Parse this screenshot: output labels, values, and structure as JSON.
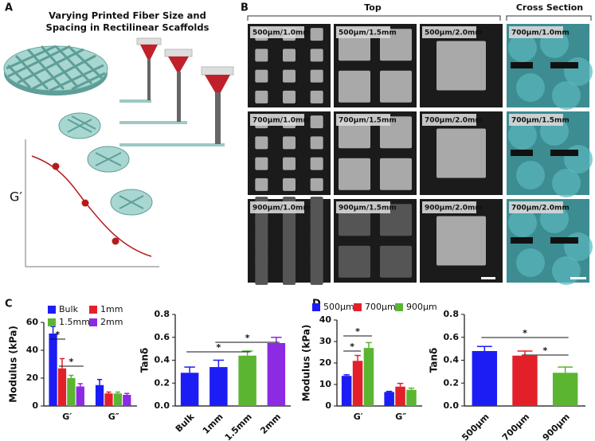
{
  "panel_labels": [
    "A",
    "B",
    "C",
    "D"
  ],
  "panel_a": {
    "title_lines": [
      "Varying Printed Fiber Size and",
      "Spacing in Rectilinear Scaffolds"
    ],
    "axis_label": "G′"
  },
  "panel_b": {
    "top": "Top",
    "cross_section": "Cross Section",
    "images": [
      [
        "500μm/1.0mm",
        "500μm/1.5mm",
        "500μm/2.0mm",
        "700μm/1.0mm"
      ],
      [
        "700μm/1.0mm",
        "700μm/1.5mm",
        "700μm/2.0mm",
        "700μm/1.5mm"
      ],
      [
        "900μm/1.0mm",
        "900μm/1.5mm",
        "900μm/2.0mm",
        "700μm/2.0mm"
      ]
    ]
  },
  "chart_data": [
    {
      "type": "bar",
      "ylabel": "Modulus (kPa)",
      "categories": [
        "G′",
        "G″"
      ],
      "series": [
        {
          "name": "Bulk",
          "color": "#1c1cf5",
          "values": [
            52,
            15
          ],
          "errors": [
            5,
            4
          ]
        },
        {
          "name": "1mm",
          "color": "#e3202a",
          "values": [
            27,
            9
          ],
          "errors": [
            7,
            1
          ]
        },
        {
          "name": "1.5mm",
          "color": "#5bb531",
          "values": [
            20,
            9
          ],
          "errors": [
            2,
            1
          ]
        },
        {
          "name": "2mm",
          "color": "#8b2be2",
          "values": [
            14,
            8
          ],
          "errors": [
            2,
            1
          ]
        }
      ],
      "ylim": [
        0,
        60
      ],
      "yticks": [
        0,
        20,
        40,
        60
      ],
      "annotations": [
        "*",
        "*"
      ]
    },
    {
      "type": "bar",
      "ylabel": "Tanδ",
      "categories": [
        "Bulk",
        "1mm",
        "1.5mm",
        "2mm"
      ],
      "values": [
        0.29,
        0.34,
        0.44,
        0.55
      ],
      "errors": [
        0.05,
        0.06,
        0.04,
        0.05
      ],
      "colors": [
        "#1c1cf5",
        "#1c1cf5",
        "#5bb531",
        "#8b2be2"
      ],
      "ylim": [
        0,
        0.8
      ],
      "yticks": [
        {
          "value": 0,
          "label": "0.0"
        },
        0.2,
        0.4,
        0.6,
        0.8
      ],
      "annotations": [
        "*",
        "*"
      ]
    },
    {
      "type": "bar",
      "ylabel": "Modulus (kPa)",
      "categories": [
        "G′",
        "G″"
      ],
      "series": [
        {
          "name": "500μm",
          "color": "#1c1cf5",
          "values": [
            14,
            6.5
          ],
          "errors": [
            0.5,
            0.3
          ]
        },
        {
          "name": "700μm",
          "color": "#e3202a",
          "values": [
            21,
            9
          ],
          "errors": [
            2.5,
            1.5
          ]
        },
        {
          "name": "900μm",
          "color": "#5bb531",
          "values": [
            27,
            7.5
          ],
          "errors": [
            2.5,
            0.8
          ]
        }
      ],
      "ylim": [
        0,
        40
      ],
      "yticks": [
        0,
        10,
        20,
        30,
        40
      ],
      "annotations": [
        "*",
        "*"
      ]
    },
    {
      "type": "bar",
      "ylabel": "Tanδ",
      "categories": [
        "500μm",
        "700μm",
        "900μm"
      ],
      "values": [
        0.48,
        0.44,
        0.29
      ],
      "errors": [
        0.04,
        0.04,
        0.05
      ],
      "colors": [
        "#1c1cf5",
        "#e3202a",
        "#5bb531"
      ],
      "ylim": [
        0,
        0.8
      ],
      "yticks": [
        {
          "value": 0,
          "label": "0.0"
        },
        0.2,
        0.4,
        0.6,
        0.8
      ],
      "annotations": [
        "*",
        "*"
      ]
    }
  ]
}
